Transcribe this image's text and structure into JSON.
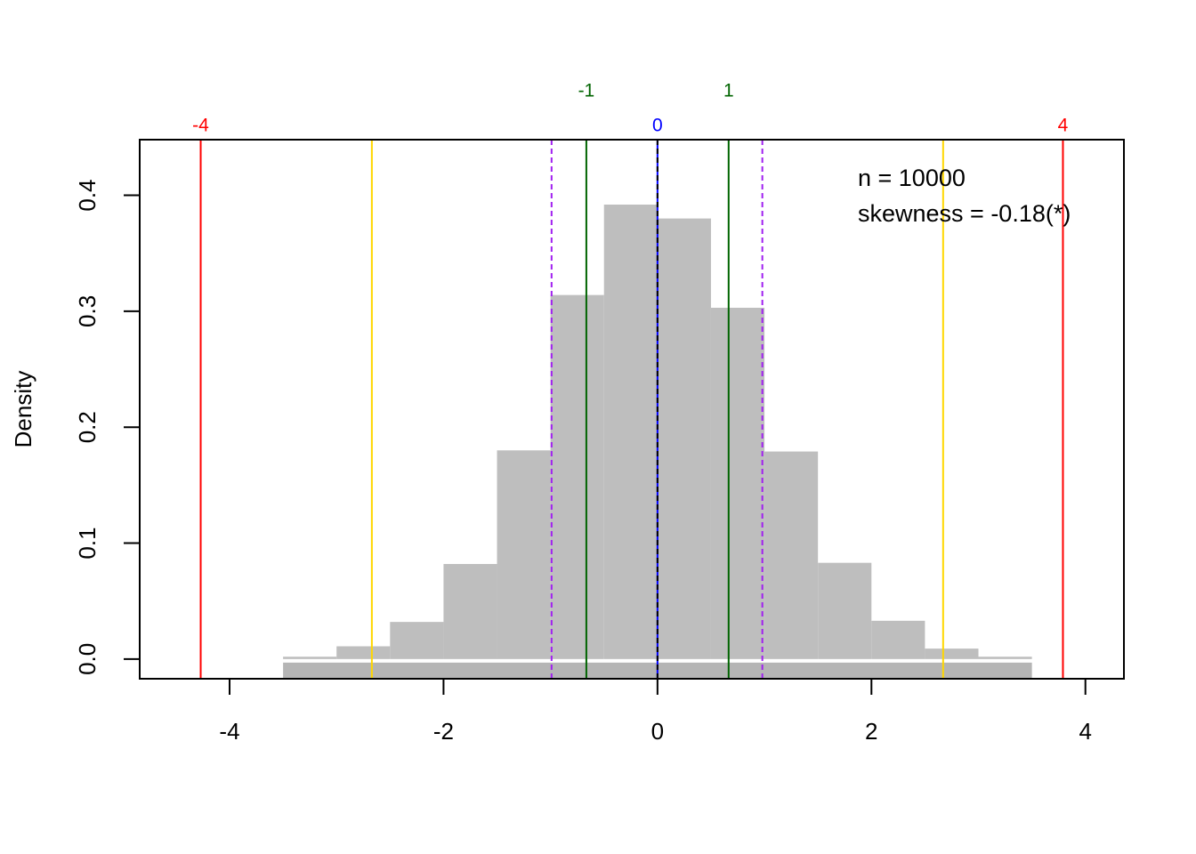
{
  "chart_data": {
    "type": "histogram",
    "y_label": "Density",
    "bins": [
      -3.5,
      -3,
      -2.5,
      -2,
      -1.5,
      -1,
      -0.5,
      0,
      0.5,
      1,
      1.5,
      2,
      2.5,
      3,
      3.5
    ],
    "values": [
      0.002,
      0.011,
      0.032,
      0.082,
      0.18,
      0.314,
      0.392,
      0.38,
      0.303,
      0.179,
      0.083,
      0.033,
      0.009,
      0.002
    ],
    "color": "#bebebe",
    "rug_color": "#a8a8a8",
    "xlim": [
      -4.84,
      4.36
    ],
    "ylim": [
      -0.017,
      0.448
    ],
    "xticks": [
      -4,
      -2,
      0,
      2,
      4
    ],
    "yticks": [
      {
        "value": 0,
        "label": "0.0"
      },
      0.1,
      0.2,
      0.3,
      0.4
    ],
    "vlines": [
      {
        "value": -4.27,
        "color": "#ff0000",
        "dashed": false,
        "label": "-4",
        "label_row": 1
      },
      {
        "value": 3.79,
        "color": "#ff0000",
        "dashed": false,
        "label": "4",
        "label_row": 1
      },
      {
        "value": -2.67,
        "color": "#ffd700",
        "dashed": false
      },
      {
        "value": 2.67,
        "color": "#ffd700",
        "dashed": false
      },
      {
        "value": -0.99,
        "color": "#a020f0",
        "dashed": true
      },
      {
        "value": 0.98,
        "color": "#a020f0",
        "dashed": true
      },
      {
        "value": -0.665,
        "color": "#006400",
        "dashed": false,
        "label": "-1",
        "label_row": 2
      },
      {
        "value": 0.665,
        "color": "#006400",
        "dashed": false,
        "label": "1",
        "label_row": 2
      },
      {
        "value": 0,
        "color": "#0000ff",
        "dashed": false,
        "label": "0",
        "label_row": 1
      },
      {
        "value": 0,
        "color": "#000000",
        "dashed": true
      }
    ],
    "annotations": [
      "n = 10000",
      "skewness = -0.18(*)"
    ],
    "legend": "topright"
  }
}
